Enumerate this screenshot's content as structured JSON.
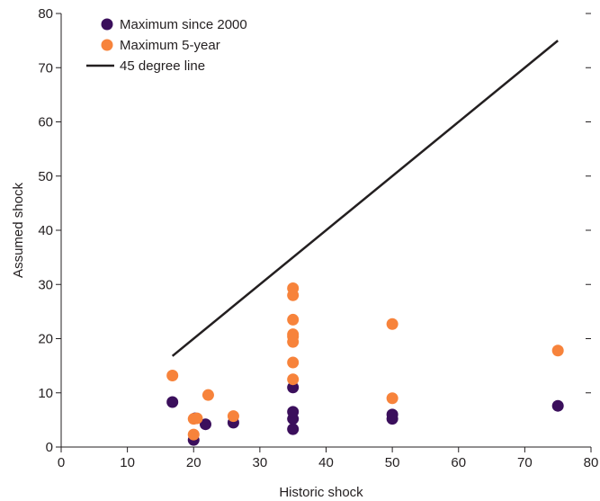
{
  "chart_data": {
    "type": "scatter",
    "title": "",
    "xlabel": "Historic shock",
    "ylabel": "Assumed shock",
    "xlim": [
      0,
      80
    ],
    "ylim": [
      0,
      80
    ],
    "xticks": [
      0,
      10,
      20,
      30,
      40,
      50,
      60,
      70,
      80
    ],
    "yticks": [
      0,
      10,
      20,
      30,
      40,
      50,
      60,
      70,
      80
    ],
    "grid": false,
    "legend_position": "top-left",
    "series": [
      {
        "name": "Maximum since 2000",
        "color": "#3b0f5c",
        "points": [
          [
            16.8,
            8.3
          ],
          [
            20.0,
            1.3
          ],
          [
            20.2,
            5.3
          ],
          [
            21.8,
            4.2
          ],
          [
            26.0,
            4.5
          ],
          [
            35.0,
            3.3
          ],
          [
            35.0,
            5.2
          ],
          [
            35.0,
            6.5
          ],
          [
            35.0,
            11.0
          ],
          [
            50.0,
            5.2
          ],
          [
            50.0,
            6.0
          ],
          [
            75.0,
            7.6
          ]
        ]
      },
      {
        "name": "Maximum 5-year",
        "color": "#f7833b",
        "points": [
          [
            16.8,
            13.2
          ],
          [
            20.0,
            2.3
          ],
          [
            20.0,
            5.2
          ],
          [
            20.5,
            5.3
          ],
          [
            22.2,
            9.6
          ],
          [
            26.0,
            5.7
          ],
          [
            35.0,
            12.5
          ],
          [
            35.0,
            15.6
          ],
          [
            35.0,
            19.4
          ],
          [
            35.0,
            20.4
          ],
          [
            35.0,
            20.8
          ],
          [
            35.0,
            23.5
          ],
          [
            35.0,
            28.0
          ],
          [
            35.0,
            29.3
          ],
          [
            50.0,
            9.0
          ],
          [
            50.0,
            22.7
          ],
          [
            75.0,
            17.8
          ]
        ]
      }
    ],
    "reference_line": {
      "name": "45 degree line",
      "color": "#231f20",
      "from": [
        16.8,
        16.8
      ],
      "to": [
        75.0,
        75.0
      ]
    }
  }
}
